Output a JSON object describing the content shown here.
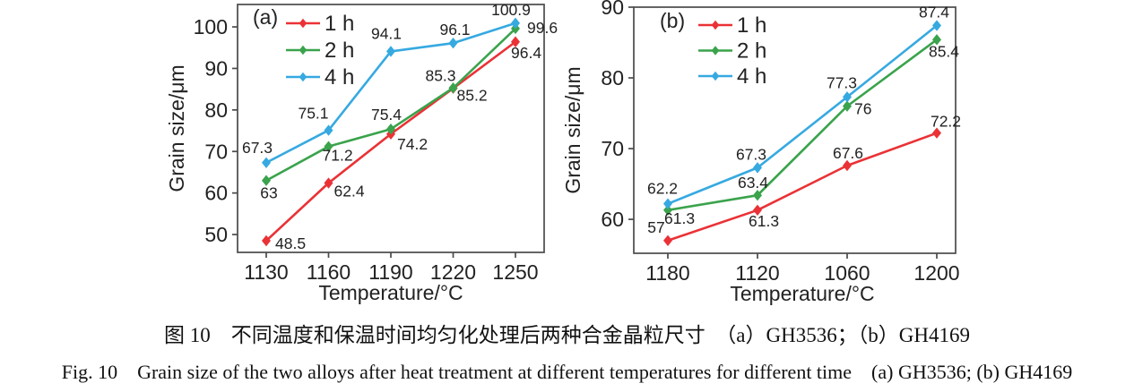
{
  "figure": {
    "captions": {
      "zh": "图 10　不同温度和保温时间均匀化处理后两种合金晶粒尺寸　（a）GH3536；（b）GH4169",
      "en": "Fig. 10　Grain size of the two alloys after heat treatment at different temperatures for different time　(a) GH3536; (b) GH4169"
    }
  },
  "colors": {
    "axis": "#4a4a4a",
    "text": "#222222",
    "series_1h": "#ea3236",
    "series_2h": "#3aa34c",
    "series_4h": "#36a9e1"
  },
  "chart_data": [
    {
      "type": "line",
      "panel_label": "(a)",
      "xlabel": "Temperature/°C",
      "ylabel": "Grain size/μm",
      "categories": [
        "1130",
        "1160",
        "1190",
        "1220",
        "1250"
      ],
      "ylim": [
        45.7,
        105.4
      ],
      "yticks": [
        50,
        60,
        70,
        80,
        90,
        100
      ],
      "grid": false,
      "marker": "diamond",
      "legend_position": "top-left-inside",
      "series": [
        {
          "name": "1 h",
          "color": "#ea3236",
          "values": [
            48.5,
            62.4,
            74.2,
            85.2,
            96.4
          ],
          "point_labels": [
            "48.5",
            "62.4",
            "74.2",
            "85.2",
            "96.4"
          ],
          "label_offsets": [
            [
              10,
              9,
              "start"
            ],
            [
              6,
              15,
              "start"
            ],
            [
              7,
              17,
              "start"
            ],
            [
              4,
              14,
              "start"
            ],
            [
              -5,
              18,
              "start"
            ]
          ]
        },
        {
          "name": "2 h",
          "color": "#3aa34c",
          "values": [
            63,
            71.2,
            75.4,
            85.3,
            99.6
          ],
          "point_labels": [
            "63",
            "71.2",
            "75.4",
            "85.3",
            "99.6"
          ],
          "label_offsets": [
            [
              3,
              20,
              "middle"
            ],
            [
              -7,
              16,
              "start"
            ],
            [
              -5,
              -10,
              "middle"
            ],
            [
              -14,
              -8,
              "middle"
            ],
            [
              13,
              5,
              "start"
            ]
          ]
        },
        {
          "name": "4 h",
          "color": "#36a9e1",
          "values": [
            67.3,
            75.1,
            94.1,
            96.1,
            100.9
          ],
          "point_labels": [
            "67.3",
            "75.1",
            "94.1",
            "96.1",
            "100.9"
          ],
          "label_offsets": [
            [
              -10,
              -11,
              "middle"
            ],
            [
              -17,
              -13,
              "middle"
            ],
            [
              -5,
              -14,
              "middle"
            ],
            [
              2,
              -9,
              "middle"
            ],
            [
              -5,
              -9,
              "middle"
            ]
          ]
        }
      ]
    },
    {
      "type": "line",
      "panel_label": "(b)",
      "xlabel": "Temperature/°C",
      "ylabel": "Grain size/μm",
      "categories": [
        "1180",
        "1120",
        "1060",
        "1200"
      ],
      "ylim": [
        55.2,
        90
      ],
      "yticks": [
        60,
        70,
        80,
        90
      ],
      "grid": false,
      "marker": "diamond",
      "legend_position": "top-left-inside",
      "series": [
        {
          "name": "1 h",
          "color": "#ea3236",
          "values": [
            57,
            61.3,
            67.6,
            72.2
          ],
          "point_labels": [
            "57",
            "61.3",
            "67.6",
            "72.2"
          ],
          "label_offsets": [
            [
              -13,
              -9,
              "middle"
            ],
            [
              -10,
              18,
              "start"
            ],
            [
              1,
              -8,
              "middle"
            ],
            [
              10,
              -7,
              "middle"
            ]
          ]
        },
        {
          "name": "2 h",
          "color": "#3aa34c",
          "values": [
            61.3,
            63.4,
            76,
            85.4
          ],
          "point_labels": [
            "61.3",
            "63.4",
            "76",
            "85.4"
          ],
          "label_offsets": [
            [
              -4,
              15,
              "start"
            ],
            [
              -5,
              -8,
              "middle"
            ],
            [
              8,
              9,
              "start"
            ],
            [
              8,
              19,
              "middle"
            ]
          ]
        },
        {
          "name": "4 h",
          "color": "#36a9e1",
          "values": [
            62.2,
            67.3,
            77.3,
            87.4
          ],
          "point_labels": [
            "62.2",
            "67.3",
            "77.3",
            "87.4"
          ],
          "label_offsets": [
            [
              -6,
              -11,
              "middle"
            ],
            [
              -7,
              -9,
              "middle"
            ],
            [
              -6,
              -10,
              "middle"
            ],
            [
              -3,
              -9,
              "middle"
            ]
          ]
        }
      ]
    }
  ]
}
